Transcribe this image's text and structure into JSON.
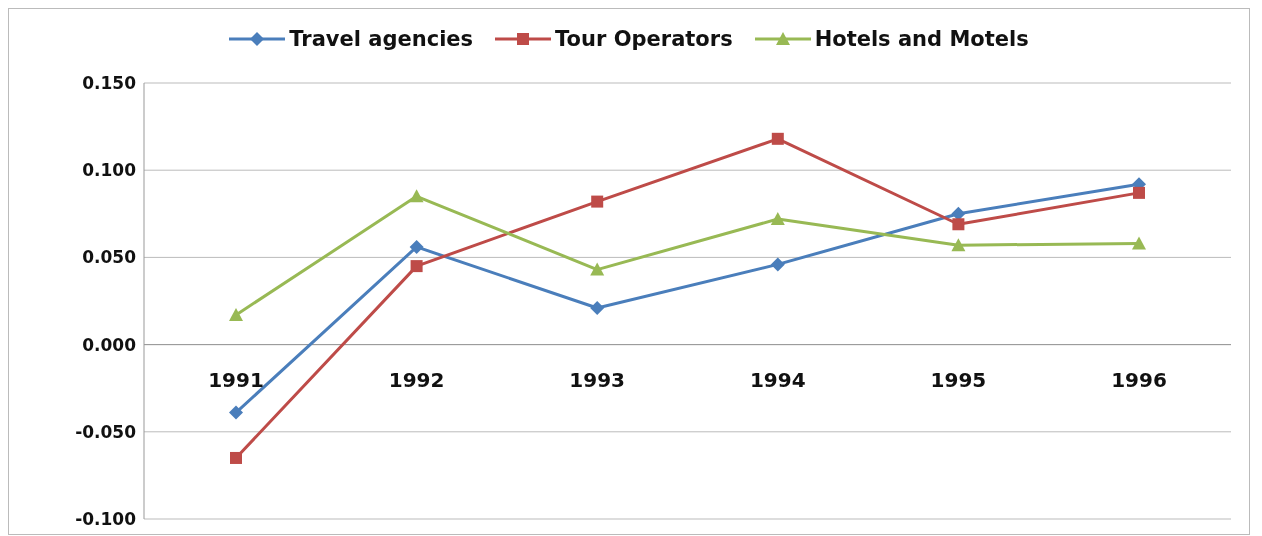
{
  "chart_data": {
    "type": "line",
    "categories": [
      "1991",
      "1992",
      "1993",
      "1994",
      "1995",
      "1996"
    ],
    "series": [
      {
        "name": "Travel agencies",
        "color": "#4a7ebb",
        "marker": "diamond",
        "values": [
          -0.039,
          0.056,
          0.021,
          0.046,
          0.075,
          0.092
        ]
      },
      {
        "name": "Tour Operators",
        "color": "#be4b48",
        "marker": "square",
        "values": [
          -0.065,
          0.045,
          0.082,
          0.118,
          0.069,
          0.087
        ]
      },
      {
        "name": "Hotels and Motels",
        "color": "#98b954",
        "marker": "triangle",
        "values": [
          0.017,
          0.085,
          0.043,
          0.072,
          0.057,
          0.058
        ]
      }
    ],
    "ylim": [
      -0.1,
      0.15
    ],
    "yticks": [
      {
        "value": -0.1,
        "label": "-0.100"
      },
      {
        "value": -0.05,
        "label": "-0.050"
      },
      {
        "value": 0,
        "label": "0.000"
      },
      {
        "value": 0.05,
        "label": "0.050"
      },
      {
        "value": 0.1,
        "label": "0.100"
      },
      {
        "value": 0.15,
        "label": "0.150"
      }
    ],
    "grid": "y",
    "legend": "top",
    "line_style": "solid"
  }
}
